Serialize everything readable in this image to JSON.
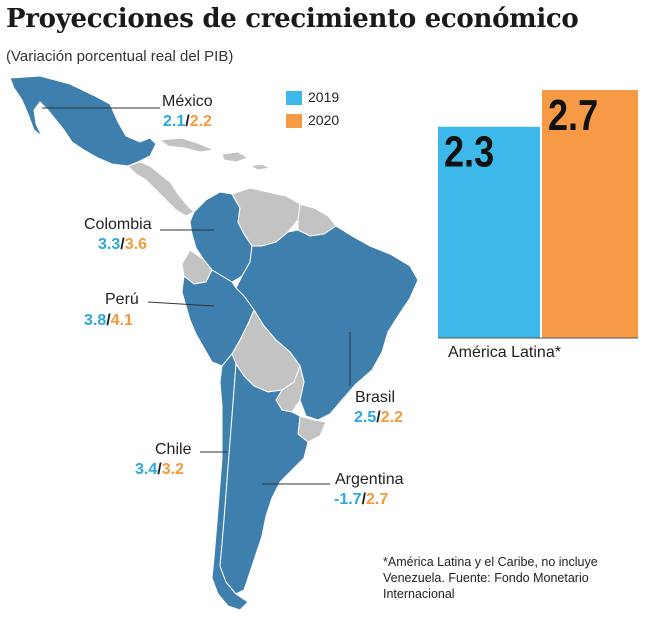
{
  "title": "Proyecciones de crecimiento económico",
  "subtitle": "(Variación porcentual real del PIB)",
  "colors": {
    "y2019": "#3cb9ea",
    "y2020": "#f79a46",
    "focus_country": "#3e7fae",
    "other_country": "#c3c3c3",
    "ocean": "#ffffff"
  },
  "legend": {
    "y2019": "2019",
    "y2020": "2020"
  },
  "countries": {
    "mexico": {
      "name": "México",
      "v2019": "2.1",
      "v2020": "2.2"
    },
    "colombia": {
      "name": "Colombia",
      "v2019": "3.3",
      "v2020": "3.6"
    },
    "peru": {
      "name": "Perú",
      "v2019": "3.8",
      "v2020": "4.1"
    },
    "brasil": {
      "name": "Brasil",
      "v2019": "2.5",
      "v2020": "2.2"
    },
    "chile": {
      "name": "Chile",
      "v2019": "3.4",
      "v2020": "3.2"
    },
    "argentina": {
      "name": "Argentina",
      "v2019": "-1.7",
      "v2020": "2.7"
    }
  },
  "chart_data": {
    "type": "bar",
    "categories": [
      "2019",
      "2020"
    ],
    "series": [
      {
        "name": "América Latina*",
        "values": [
          2.3,
          2.7
        ]
      }
    ],
    "value_labels": [
      "2.3",
      "2.7"
    ],
    "xlabel": "América Latina*",
    "ylim": [
      0,
      2.7
    ]
  },
  "footnote": {
    "line1": "*América Latina y el Caribe, no incluye",
    "line2": "Venezuela. Fuente: Fondo Monetario",
    "line3": "Internacional"
  }
}
